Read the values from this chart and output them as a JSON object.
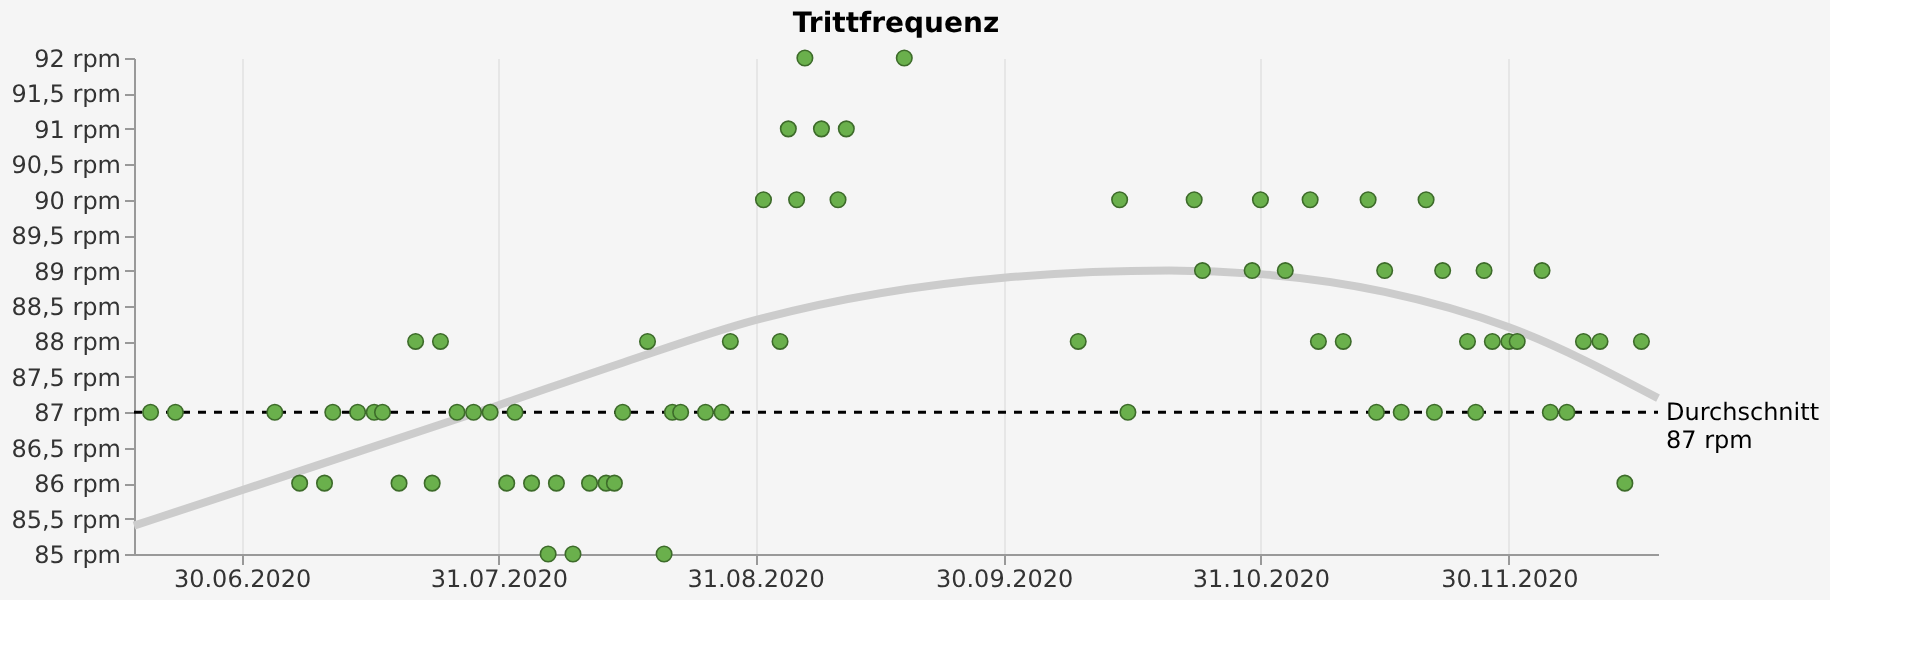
{
  "chart_data": {
    "type": "scatter",
    "title": "Trittfrequenz",
    "xlim": [
      "2020-06-17",
      "2020-12-18"
    ],
    "xticks": [
      {
        "value": "2020-06-30",
        "label": "30.06.2020"
      },
      {
        "value": "2020-07-31",
        "label": "31.07.2020"
      },
      {
        "value": "2020-08-31",
        "label": "31.08.2020"
      },
      {
        "value": "2020-09-30",
        "label": "30.09.2020"
      },
      {
        "value": "2020-10-31",
        "label": "31.10.2020"
      },
      {
        "value": "2020-11-30",
        "label": "30.11.2020"
      }
    ],
    "ylim": [
      85,
      92
    ],
    "yticks": [
      {
        "value": 85,
        "label": "85 rpm"
      },
      {
        "value": 85.5,
        "label": "85,5 rpm"
      },
      {
        "value": 86,
        "label": "86 rpm"
      },
      {
        "value": 86.5,
        "label": "86,5 rpm"
      },
      {
        "value": 87,
        "label": "87 rpm"
      },
      {
        "value": 87.5,
        "label": "87,5 rpm"
      },
      {
        "value": 88,
        "label": "88 rpm"
      },
      {
        "value": 88.5,
        "label": "88,5 rpm"
      },
      {
        "value": 89,
        "label": "89 rpm"
      },
      {
        "value": 89.5,
        "label": "89,5 rpm"
      },
      {
        "value": 90,
        "label": "90 rpm"
      },
      {
        "value": 90.5,
        "label": "90,5 rpm"
      },
      {
        "value": 91,
        "label": "91 rpm"
      },
      {
        "value": 91.5,
        "label": "91,5 rpm"
      },
      {
        "value": 92,
        "label": "92 rpm"
      }
    ],
    "grid": "x",
    "marker": "circle",
    "series": [
      {
        "color": "#6ab04c",
        "x": [
          "2020-06-19",
          "2020-06-22",
          "2020-07-04",
          "2020-07-07",
          "2020-07-10",
          "2020-07-11",
          "2020-07-14",
          "2020-07-16",
          "2020-07-17",
          "2020-07-19",
          "2020-07-21",
          "2020-07-23",
          "2020-07-24",
          "2020-07-26",
          "2020-07-28",
          "2020-07-30",
          "2020-08-01",
          "2020-08-02",
          "2020-08-04",
          "2020-08-06",
          "2020-08-07",
          "2020-08-09",
          "2020-08-11",
          "2020-08-13",
          "2020-08-14",
          "2020-08-15",
          "2020-08-18",
          "2020-08-20",
          "2020-08-21",
          "2020-08-22",
          "2020-08-25",
          "2020-08-27",
          "2020-08-28",
          "2020-09-01",
          "2020-09-03",
          "2020-09-04",
          "2020-09-05",
          "2020-09-06",
          "2020-09-08",
          "2020-09-10",
          "2020-09-11",
          "2020-09-18",
          "2020-10-09",
          "2020-10-14",
          "2020-10-15",
          "2020-10-23",
          "2020-10-24",
          "2020-10-30",
          "2020-10-31",
          "2020-11-03",
          "2020-11-06",
          "2020-11-07",
          "2020-11-10",
          "2020-11-13",
          "2020-11-14",
          "2020-11-15",
          "2020-11-17",
          "2020-11-20",
          "2020-11-21",
          "2020-11-22",
          "2020-11-25",
          "2020-11-26",
          "2020-11-27",
          "2020-11-28",
          "2020-11-30",
          "2020-12-01",
          "2020-12-04",
          "2020-12-05",
          "2020-12-07",
          "2020-12-09",
          "2020-12-11",
          "2020-12-14",
          "2020-12-16"
        ],
        "values": [
          87,
          87,
          87,
          86,
          86,
          87,
          87,
          87,
          87,
          86,
          88,
          86,
          88,
          87,
          87,
          87,
          86,
          87,
          86,
          85,
          86,
          85,
          86,
          86,
          86,
          87,
          88,
          85,
          87,
          87,
          87,
          87,
          88,
          90,
          88,
          91,
          90,
          92,
          91,
          90,
          91,
          92,
          88,
          90,
          87,
          90,
          89,
          89,
          90,
          89,
          90,
          88,
          88,
          90,
          87,
          89,
          87,
          90,
          87,
          89,
          88,
          87,
          89,
          88,
          88,
          88,
          89,
          87,
          87,
          88,
          88,
          86,
          88
        ]
      },
      {
        "type": "line",
        "marker": "none",
        "color": "#cccccc",
        "x": [
          "2020-06-17",
          "2020-06-30",
          "2020-07-31",
          "2020-08-15",
          "2020-08-31",
          "2020-09-30",
          "2020-10-20",
          "2020-10-31",
          "2020-11-15",
          "2020-11-30",
          "2020-12-18"
        ],
        "values": [
          85.4,
          85.9,
          87.1,
          87.7,
          88.3,
          88.9,
          89.0,
          88.95,
          88.7,
          88.2,
          87.2
        ]
      }
    ],
    "ref_lines": [
      {
        "axis": "y",
        "value": 87,
        "label": "Durchschnitt\n87 rpm",
        "color": "#000000",
        "line_style": "dashed"
      }
    ]
  }
}
